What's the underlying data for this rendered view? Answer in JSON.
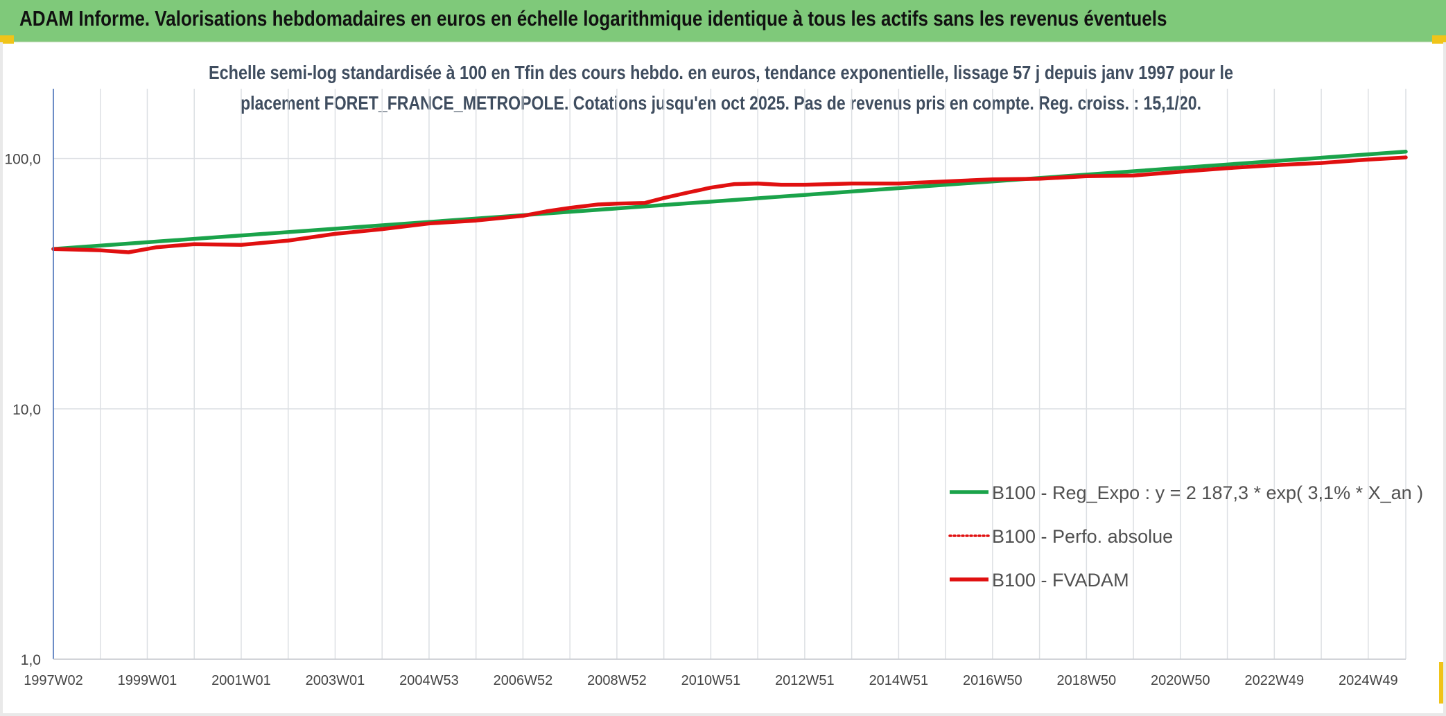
{
  "banner": {
    "title": "ADAM Informe. Valorisations hebdomadaires en euros en échelle logarithmique identique à tous les actifs sans les revenus éventuels"
  },
  "colors": {
    "banner": "#7fc97a",
    "regression": "#1aa34a",
    "perfo": "#e01010",
    "fvadam": "#e01010",
    "grid": "#dcdfe3",
    "axis": "#5b7fbf"
  },
  "chart_data": {
    "type": "line",
    "title_lines": [
      "Echelle semi-log standardisée à 100 en Tfin des cours hebdo. en euros, tendance exponentielle, lissage 57 j depuis janv 1997 pour le",
      "placement FORET_FRANCE_METROPOLE. Cotations jusqu'en oct 2025. Pas de revenus pris en compte. Reg. croiss. : 15,1/20."
    ],
    "y_scale": "log",
    "ylim": [
      1,
      190
    ],
    "y_ticks": [
      {
        "value": 1,
        "label": "1,0"
      },
      {
        "value": 10,
        "label": "10,0"
      },
      {
        "value": 100,
        "label": "100,0"
      }
    ],
    "xlim": [
      1997.0,
      2025.8
    ],
    "x_ticks": [
      {
        "value": 1997.0,
        "label": "1997W02"
      },
      {
        "value": 1999.0,
        "label": "1999W01"
      },
      {
        "value": 2001.0,
        "label": "2001W01"
      },
      {
        "value": 2003.0,
        "label": "2003W01"
      },
      {
        "value": 2005.0,
        "label": "2004W53"
      },
      {
        "value": 2007.0,
        "label": "2006W52"
      },
      {
        "value": 2009.0,
        "label": "2008W52"
      },
      {
        "value": 2011.0,
        "label": "2010W51"
      },
      {
        "value": 2013.0,
        "label": "2012W51"
      },
      {
        "value": 2015.0,
        "label": "2014W51"
      },
      {
        "value": 2017.0,
        "label": "2016W50"
      },
      {
        "value": 2019.0,
        "label": "2018W50"
      },
      {
        "value": 2021.0,
        "label": "2020W50"
      },
      {
        "value": 2023.0,
        "label": "2022W49"
      },
      {
        "value": 2025.0,
        "label": "2024W49"
      }
    ],
    "x_minor_grid": [
      1998,
      2000,
      2002,
      2004,
      2006,
      2008,
      2010,
      2012,
      2014,
      2016,
      2018,
      2020,
      2022,
      2024
    ],
    "grid": true,
    "legend_position": "bottom-right",
    "series": [
      {
        "name": "B100 - Reg_Expo : y = 2 187,3 * exp( 3,1% *  X_an )",
        "style": "solid-thick",
        "x": [
          1997.0,
          2025.8
        ],
        "y": [
          43.5,
          106.5
        ]
      },
      {
        "name": "B100 - Perfo. absolue",
        "style": "dotted",
        "x": [],
        "y": []
      },
      {
        "name": "B100 - FVADAM",
        "style": "solid-thick",
        "x": [
          1997.0,
          1998.0,
          1998.6,
          1999.2,
          2000.0,
          2001.0,
          2002.0,
          2003.0,
          2004.0,
          2005.0,
          2006.0,
          2007.0,
          2007.5,
          2008.0,
          2008.6,
          2009.0,
          2009.6,
          2010.0,
          2010.5,
          2011.0,
          2011.5,
          2012.0,
          2012.5,
          2013.0,
          2014.0,
          2015.0,
          2016.0,
          2017.0,
          2018.0,
          2019.0,
          2020.0,
          2021.0,
          2022.0,
          2023.0,
          2024.0,
          2025.0,
          2025.8
        ],
        "y": [
          43.5,
          43.0,
          42.2,
          44.2,
          45.5,
          45.2,
          47.0,
          50.0,
          52.2,
          55.0,
          56.5,
          59.0,
          61.5,
          63.5,
          65.5,
          66.0,
          66.5,
          69.5,
          73.0,
          76.5,
          79.0,
          79.5,
          78.5,
          78.5,
          79.5,
          79.5,
          81.0,
          82.5,
          83.0,
          85.0,
          85.5,
          88.5,
          91.5,
          94.0,
          96.0,
          99.0,
          101.0
        ]
      }
    ]
  }
}
